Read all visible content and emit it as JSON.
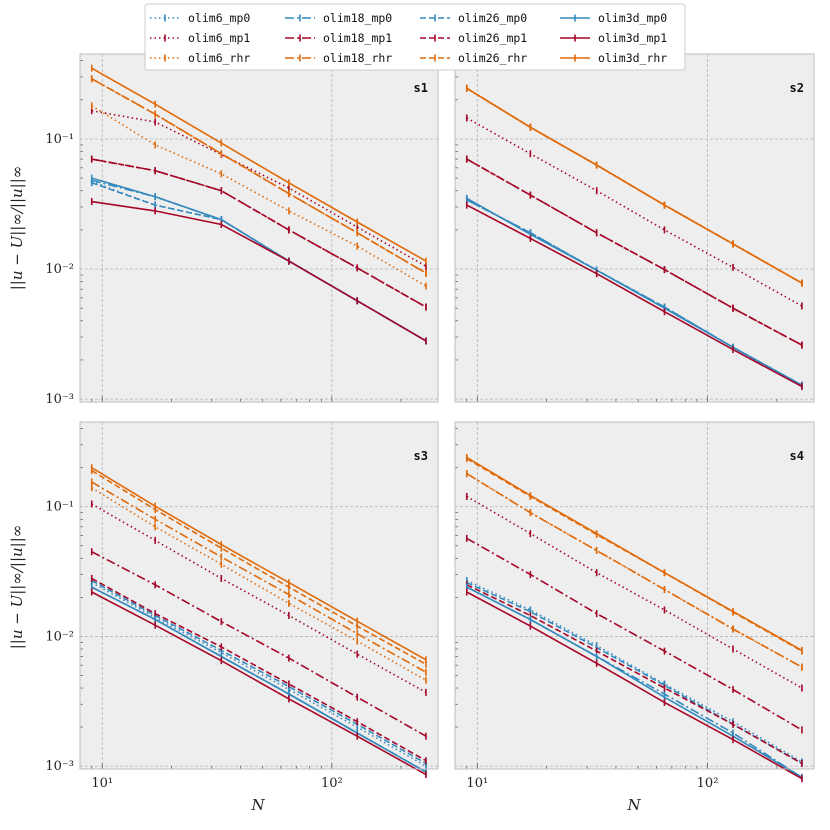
{
  "chart_data": {
    "type": "line",
    "xscale": "log",
    "yscale": "log",
    "xlabel": "N",
    "ylabel": "||u − U||∞/||u||∞",
    "xlim": [
      8,
      290
    ],
    "ylim": [
      0.00095,
      0.45
    ],
    "x": [
      9,
      17,
      33,
      65,
      129,
      257
    ],
    "x_ticks": [
      {
        "value": 10,
        "label": "10¹"
      },
      {
        "value": 100,
        "label": "10²"
      }
    ],
    "y_ticks": [
      {
        "value": 0.001,
        "label": "10⁻³"
      },
      {
        "value": 0.01,
        "label": "10⁻²"
      },
      {
        "value": 0.1,
        "label": "10⁻¹"
      }
    ],
    "legend": {
      "placement": "top-center",
      "columns": [
        [
          "olim6_mp0",
          "olim6_mp1",
          "olim6_rhr"
        ],
        [
          "olim18_mp0",
          "olim18_mp1",
          "olim18_rhr"
        ],
        [
          "olim26_mp0",
          "olim26_mp1",
          "olim26_rhr"
        ],
        [
          "olim3d_mp0",
          "olim3d_mp1",
          "olim3d_rhr"
        ]
      ]
    },
    "styles": {
      "colors": {
        "mp0": "#348abd",
        "mp1": "#a60628",
        "rhr": "#e06a0a"
      },
      "dashes": {
        "olim6": "dotted",
        "olim18": "dashdot",
        "olim26": "dashed",
        "olim3d": "solid"
      }
    },
    "panels": [
      {
        "label": "s1",
        "series": [
          {
            "name": "olim6_mp0",
            "values": [
              0.047,
              0.031,
              0.024,
              0.0115,
              0.0057,
              0.0028
            ]
          },
          {
            "name": "olim6_mp1",
            "values": [
              0.165,
              0.135,
              0.076,
              0.042,
              0.021,
              0.0105
            ]
          },
          {
            "name": "olim6_rhr",
            "values": [
              0.18,
              0.09,
              0.054,
              0.028,
              0.015,
              0.0074
            ]
          },
          {
            "name": "olim18_mp0",
            "values": [
              0.048,
              0.036,
              0.024,
              0.0115,
              0.0057,
              0.0028
            ]
          },
          {
            "name": "olim18_mp1",
            "values": [
              0.07,
              0.057,
              0.04,
              0.02,
              0.0102,
              0.0051
            ]
          },
          {
            "name": "olim18_rhr",
            "values": [
              0.29,
              0.155,
              0.077,
              0.038,
              0.019,
              0.0093
            ]
          },
          {
            "name": "olim26_mp0",
            "values": [
              0.046,
              0.031,
              0.024,
              0.0115,
              0.0057,
              0.0028
            ]
          },
          {
            "name": "olim26_mp1",
            "values": [
              0.07,
              0.057,
              0.04,
              0.02,
              0.0102,
              0.0051
            ]
          },
          {
            "name": "olim26_rhr",
            "values": [
              0.29,
              0.155,
              0.077,
              0.038,
              0.019,
              0.0093
            ]
          },
          {
            "name": "olim3d_mp0",
            "values": [
              0.05,
              0.036,
              0.024,
              0.0115,
              0.0057,
              0.0028
            ]
          },
          {
            "name": "olim3d_mp1",
            "values": [
              0.033,
              0.028,
              0.022,
              0.0115,
              0.0057,
              0.0028
            ]
          },
          {
            "name": "olim3d_rhr",
            "values": [
              0.35,
              0.185,
              0.093,
              0.046,
              0.023,
              0.0115
            ]
          }
        ]
      },
      {
        "label": "s2",
        "series": [
          {
            "name": "olim6_mp0",
            "values": [
              0.034,
              0.019,
              0.0098,
              0.0051,
              0.0025,
              0.00128
            ]
          },
          {
            "name": "olim6_mp1",
            "values": [
              0.145,
              0.077,
              0.04,
              0.02,
              0.0103,
              0.0052
            ]
          },
          {
            "name": "olim6_rhr",
            "values": [
              0.245,
              0.123,
              0.063,
              0.031,
              0.0156,
              0.0078
            ]
          },
          {
            "name": "olim18_mp0",
            "values": [
              0.034,
              0.019,
              0.0098,
              0.0051,
              0.0025,
              0.00128
            ]
          },
          {
            "name": "olim18_mp1",
            "values": [
              0.07,
              0.037,
              0.019,
              0.0099,
              0.005,
              0.0026
            ]
          },
          {
            "name": "olim18_rhr",
            "values": [
              0.245,
              0.123,
              0.063,
              0.031,
              0.0156,
              0.0078
            ]
          },
          {
            "name": "olim26_mp0",
            "values": [
              0.034,
              0.019,
              0.0098,
              0.0051,
              0.0025,
              0.00128
            ]
          },
          {
            "name": "olim26_mp1",
            "values": [
              0.07,
              0.037,
              0.019,
              0.0099,
              0.005,
              0.0026
            ]
          },
          {
            "name": "olim26_rhr",
            "values": [
              0.245,
              0.123,
              0.063,
              0.031,
              0.0156,
              0.0078
            ]
          },
          {
            "name": "olim3d_mp0",
            "values": [
              0.035,
              0.0185,
              0.0098,
              0.005,
              0.0025,
              0.00128
            ]
          },
          {
            "name": "olim3d_mp1",
            "values": [
              0.031,
              0.0172,
              0.0092,
              0.0047,
              0.0024,
              0.00125
            ]
          },
          {
            "name": "olim3d_rhr",
            "values": [
              0.245,
              0.123,
              0.063,
              0.031,
              0.0156,
              0.0078
            ]
          }
        ]
      },
      {
        "label": "s3",
        "series": [
          {
            "name": "olim6_mp0",
            "values": [
              0.026,
              0.014,
              0.0075,
              0.0039,
              0.002,
              0.001
            ]
          },
          {
            "name": "olim6_mp1",
            "values": [
              0.105,
              0.055,
              0.028,
              0.0145,
              0.0073,
              0.0037
            ]
          },
          {
            "name": "olim6_rhr",
            "values": [
              0.14,
              0.07,
              0.036,
              0.018,
              0.0092,
              0.0046
            ]
          },
          {
            "name": "olim18_mp0",
            "values": [
              0.024,
              0.0135,
              0.007,
              0.0036,
              0.0018,
              0.0009
            ]
          },
          {
            "name": "olim18_mp1",
            "values": [
              0.045,
              0.025,
              0.013,
              0.0068,
              0.0034,
              0.0017
            ]
          },
          {
            "name": "olim18_rhr",
            "values": [
              0.155,
              0.08,
              0.041,
              0.021,
              0.0105,
              0.0053
            ]
          },
          {
            "name": "olim26_mp0",
            "values": [
              0.027,
              0.0145,
              0.0078,
              0.0041,
              0.0021,
              0.00105
            ]
          },
          {
            "name": "olim26_mp1",
            "values": [
              0.028,
              0.015,
              0.0083,
              0.0043,
              0.0022,
              0.0011
            ]
          },
          {
            "name": "olim26_rhr",
            "values": [
              0.19,
              0.095,
              0.048,
              0.024,
              0.012,
              0.0061
            ]
          },
          {
            "name": "olim3d_mp0",
            "values": [
              0.024,
              0.0135,
              0.007,
              0.0036,
              0.0018,
              0.0009
            ]
          },
          {
            "name": "olim3d_mp1",
            "values": [
              0.022,
              0.0122,
              0.0065,
              0.0033,
              0.0017,
              0.00086
            ]
          },
          {
            "name": "olim3d_rhr",
            "values": [
              0.2,
              0.101,
              0.051,
              0.026,
              0.0131,
              0.0066
            ]
          }
        ]
      },
      {
        "label": "s4",
        "series": [
          {
            "name": "olim6_mp0",
            "values": [
              0.027,
              0.016,
              0.0085,
              0.0043,
              0.0022,
              0.00108
            ]
          },
          {
            "name": "olim6_mp1",
            "values": [
              0.12,
              0.062,
              0.031,
              0.016,
              0.008,
              0.004
            ]
          },
          {
            "name": "olim6_rhr",
            "values": [
              0.18,
              0.09,
              0.046,
              0.023,
              0.0114,
              0.0058
            ]
          },
          {
            "name": "olim18_mp0",
            "values": [
              0.024,
              0.0135,
              0.007,
              0.0036,
              0.0018,
              0.00082
            ]
          },
          {
            "name": "olim18_mp1",
            "values": [
              0.057,
              0.03,
              0.015,
              0.0077,
              0.0039,
              0.0019
            ]
          },
          {
            "name": "olim18_rhr",
            "values": [
              0.18,
              0.09,
              0.046,
              0.023,
              0.0114,
              0.0058
            ]
          },
          {
            "name": "olim26_mp0",
            "values": [
              0.026,
              0.0155,
              0.0082,
              0.0042,
              0.0021,
              0.00105
            ]
          },
          {
            "name": "olim26_mp1",
            "values": [
              0.025,
              0.0145,
              0.0077,
              0.004,
              0.0021,
              0.00105
            ]
          },
          {
            "name": "olim26_rhr",
            "values": [
              0.235,
              0.12,
              0.061,
              0.031,
              0.0154,
              0.0077
            ]
          },
          {
            "name": "olim3d_mp0",
            "values": [
              0.024,
              0.0135,
              0.007,
              0.0034,
              0.0017,
              0.00082
            ]
          },
          {
            "name": "olim3d_mp1",
            "values": [
              0.022,
              0.012,
              0.0062,
              0.0031,
              0.0016,
              0.0008
            ]
          },
          {
            "name": "olim3d_rhr",
            "values": [
              0.24,
              0.122,
              0.062,
              0.031,
              0.0156,
              0.0078
            ]
          }
        ]
      }
    ]
  }
}
